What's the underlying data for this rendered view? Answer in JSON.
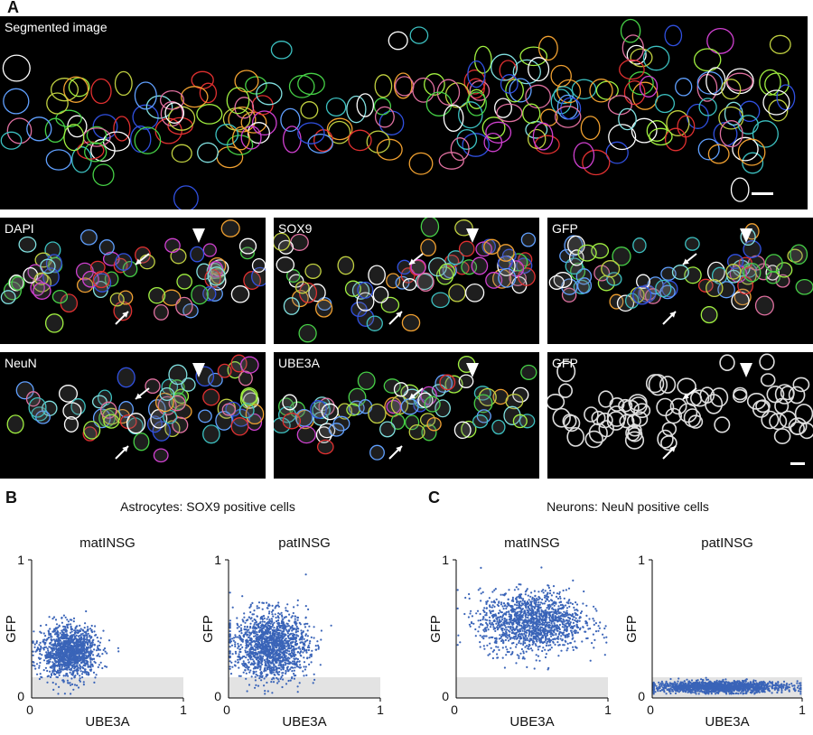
{
  "figure": {
    "panels": {
      "A": {
        "letter": "A",
        "top_label": "Segmented image",
        "tiles": [
          "DAPI",
          "SOX9",
          "GFP",
          "NeuN",
          "UBE3A",
          "GFP"
        ]
      },
      "B": {
        "letter": "B",
        "title": "Astrocytes: SOX9 positive cells"
      },
      "C": {
        "letter": "C",
        "title": "Neurons: NeuN positive cells"
      }
    },
    "colors": {
      "scatter_point": "#3a64b8",
      "threshold_band": "#e3e3e3",
      "image_background": "#000000"
    }
  },
  "chart_data": [
    {
      "type": "scatter",
      "title": "matINSG",
      "xlabel": "UBE3A",
      "ylabel": "GFP",
      "xlim": [
        0,
        1
      ],
      "ylim": [
        0,
        1
      ],
      "xticks": [
        "0",
        "1"
      ],
      "yticks": [
        "0",
        "1"
      ],
      "threshold": 0.15,
      "cluster": {
        "cx": 0.25,
        "cy": 0.33,
        "sx": 0.09,
        "sy": 0.09,
        "n": 1400
      }
    },
    {
      "type": "scatter",
      "title": "patINSG",
      "xlabel": "UBE3A",
      "ylabel": "GFP",
      "xlim": [
        0,
        1
      ],
      "ylim": [
        0,
        1
      ],
      "xticks": [
        "0",
        "1"
      ],
      "yticks": [
        "0",
        "1"
      ],
      "threshold": 0.15,
      "cluster": {
        "cx": 0.28,
        "cy": 0.38,
        "sx": 0.12,
        "sy": 0.12,
        "n": 1600
      }
    },
    {
      "type": "scatter",
      "title": "matINSG",
      "xlabel": "UBE3A",
      "ylabel": "GFP",
      "xlim": [
        0,
        1
      ],
      "ylim": [
        0,
        1
      ],
      "xticks": [
        "0",
        "1"
      ],
      "yticks": [
        "0",
        "1"
      ],
      "threshold": 0.15,
      "cluster": {
        "cx": 0.5,
        "cy": 0.55,
        "sx": 0.17,
        "sy": 0.11,
        "n": 1500
      }
    },
    {
      "type": "scatter",
      "title": "patINSG",
      "xlabel": "UBE3A",
      "ylabel": "GFP",
      "xlim": [
        0,
        1
      ],
      "ylim": [
        0,
        1
      ],
      "xticks": [
        "0",
        "1"
      ],
      "yticks": [
        "0",
        "1"
      ],
      "threshold": 0.15,
      "cluster": {
        "cx": 0.45,
        "cy": 0.08,
        "sx": 0.22,
        "sy": 0.02,
        "n": 1500
      }
    }
  ]
}
